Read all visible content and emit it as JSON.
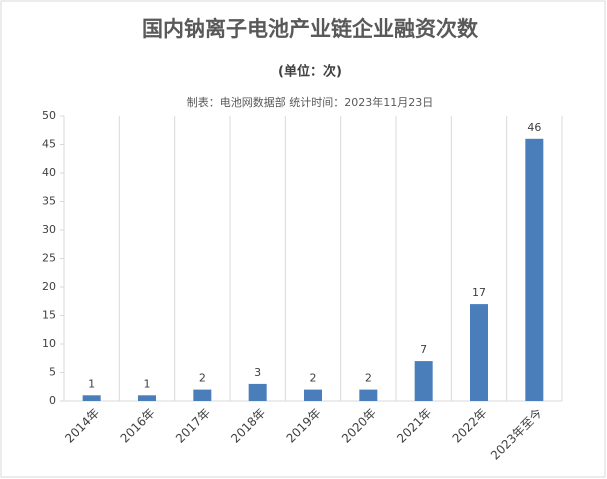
{
  "chart_data": {
    "type": "bar",
    "title": "国内钠离子电池产业链企业融资次数",
    "subtitle": "(单位：次)",
    "note": "制表：电池网数据部 统计时间：2023年11月23日",
    "categories": [
      "2014年",
      "2016年",
      "2017年",
      "2018年",
      "2019年",
      "2020年",
      "2021年",
      "2022年",
      "2023年至今"
    ],
    "values": [
      1,
      1,
      2,
      3,
      2,
      2,
      7,
      17,
      46
    ],
    "color": "#4a7ebb",
    "ylim": [
      0,
      50
    ],
    "yticks": [
      0,
      5,
      10,
      15,
      20,
      25,
      30,
      35,
      40,
      45,
      50
    ],
    "grid": true
  }
}
